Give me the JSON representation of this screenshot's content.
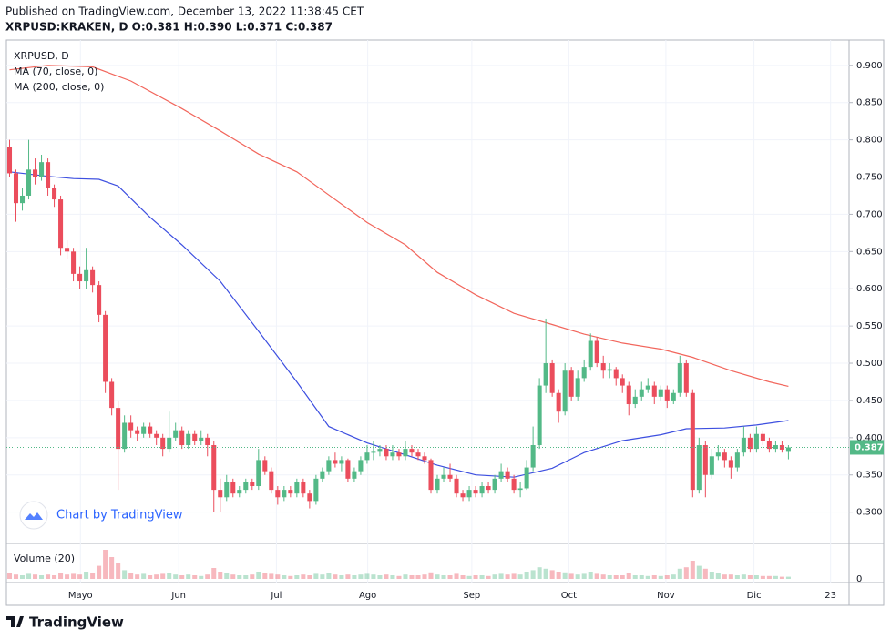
{
  "header": {
    "published": "Published on TradingView.com, December 13, 2022 11:38:45 CET",
    "symbol_line": "XRPUSD:KRAKEN, D  O:0.381 H:0.390 L:0.371 C:0.387"
  },
  "chart_data": {
    "type": "candlestick",
    "title": "XRPUSD, D",
    "up_color": "#53b987",
    "down_color": "#eb4d5c",
    "candles": [
      [
        0.79,
        0.8,
        0.75,
        0.755
      ],
      [
        0.755,
        0.76,
        0.69,
        0.715
      ],
      [
        0.715,
        0.735,
        0.705,
        0.725
      ],
      [
        0.725,
        0.8,
        0.72,
        0.76
      ],
      [
        0.76,
        0.775,
        0.74,
        0.75
      ],
      [
        0.75,
        0.78,
        0.745,
        0.77
      ],
      [
        0.77,
        0.775,
        0.725,
        0.735
      ],
      [
        0.735,
        0.74,
        0.71,
        0.72
      ],
      [
        0.72,
        0.725,
        0.645,
        0.655
      ],
      [
        0.655,
        0.665,
        0.64,
        0.65
      ],
      [
        0.65,
        0.655,
        0.61,
        0.62
      ],
      [
        0.62,
        0.63,
        0.6,
        0.61
      ],
      [
        0.61,
        0.655,
        0.6,
        0.625
      ],
      [
        0.625,
        0.63,
        0.595,
        0.605
      ],
      [
        0.605,
        0.61,
        0.555,
        0.565
      ],
      [
        0.565,
        0.57,
        0.46,
        0.475
      ],
      [
        0.475,
        0.48,
        0.43,
        0.44
      ],
      [
        0.44,
        0.45,
        0.33,
        0.385
      ],
      [
        0.385,
        0.43,
        0.38,
        0.42
      ],
      [
        0.42,
        0.43,
        0.4,
        0.41
      ],
      [
        0.41,
        0.415,
        0.395,
        0.405
      ],
      [
        0.405,
        0.42,
        0.4,
        0.415
      ],
      [
        0.415,
        0.42,
        0.4,
        0.405
      ],
      [
        0.405,
        0.41,
        0.39,
        0.4
      ],
      [
        0.4,
        0.405,
        0.375,
        0.385
      ],
      [
        0.385,
        0.435,
        0.38,
        0.4
      ],
      [
        0.4,
        0.42,
        0.395,
        0.41
      ],
      [
        0.41,
        0.415,
        0.385,
        0.39
      ],
      [
        0.39,
        0.41,
        0.385,
        0.405
      ],
      [
        0.405,
        0.41,
        0.39,
        0.395
      ],
      [
        0.395,
        0.41,
        0.39,
        0.4
      ],
      [
        0.4,
        0.405,
        0.375,
        0.39
      ],
      [
        0.39,
        0.395,
        0.3,
        0.33
      ],
      [
        0.33,
        0.345,
        0.3,
        0.32
      ],
      [
        0.32,
        0.35,
        0.315,
        0.34
      ],
      [
        0.34,
        0.345,
        0.32,
        0.325
      ],
      [
        0.325,
        0.335,
        0.32,
        0.33
      ],
      [
        0.33,
        0.345,
        0.325,
        0.34
      ],
      [
        0.34,
        0.345,
        0.33,
        0.335
      ],
      [
        0.335,
        0.385,
        0.33,
        0.37
      ],
      [
        0.37,
        0.375,
        0.35,
        0.355
      ],
      [
        0.355,
        0.36,
        0.325,
        0.33
      ],
      [
        0.33,
        0.335,
        0.31,
        0.32
      ],
      [
        0.32,
        0.335,
        0.315,
        0.33
      ],
      [
        0.33,
        0.335,
        0.32,
        0.325
      ],
      [
        0.325,
        0.345,
        0.32,
        0.34
      ],
      [
        0.34,
        0.345,
        0.32,
        0.325
      ],
      [
        0.325,
        0.33,
        0.305,
        0.315
      ],
      [
        0.315,
        0.35,
        0.31,
        0.345
      ],
      [
        0.345,
        0.36,
        0.34,
        0.355
      ],
      [
        0.355,
        0.375,
        0.35,
        0.37
      ],
      [
        0.37,
        0.38,
        0.36,
        0.365
      ],
      [
        0.365,
        0.375,
        0.355,
        0.37
      ],
      [
        0.37,
        0.372,
        0.34,
        0.345
      ],
      [
        0.345,
        0.36,
        0.34,
        0.355
      ],
      [
        0.355,
        0.375,
        0.35,
        0.37
      ],
      [
        0.37,
        0.39,
        0.365,
        0.38
      ],
      [
        0.38,
        0.395,
        0.37,
        0.381
      ],
      [
        0.381,
        0.39,
        0.375,
        0.385
      ],
      [
        0.385,
        0.39,
        0.37,
        0.375
      ],
      [
        0.375,
        0.39,
        0.37,
        0.38
      ],
      [
        0.38,
        0.385,
        0.37,
        0.375
      ],
      [
        0.375,
        0.395,
        0.37,
        0.385
      ],
      [
        0.385,
        0.39,
        0.375,
        0.38
      ],
      [
        0.38,
        0.385,
        0.37,
        0.375
      ],
      [
        0.375,
        0.38,
        0.365,
        0.37
      ],
      [
        0.37,
        0.372,
        0.325,
        0.33
      ],
      [
        0.33,
        0.35,
        0.325,
        0.345
      ],
      [
        0.345,
        0.36,
        0.34,
        0.35
      ],
      [
        0.35,
        0.365,
        0.34,
        0.345
      ],
      [
        0.345,
        0.35,
        0.32,
        0.325
      ],
      [
        0.325,
        0.33,
        0.315,
        0.32
      ],
      [
        0.32,
        0.335,
        0.315,
        0.33
      ],
      [
        0.33,
        0.335,
        0.32,
        0.325
      ],
      [
        0.325,
        0.34,
        0.32,
        0.335
      ],
      [
        0.335,
        0.34,
        0.325,
        0.33
      ],
      [
        0.33,
        0.35,
        0.325,
        0.345
      ],
      [
        0.345,
        0.365,
        0.34,
        0.355
      ],
      [
        0.355,
        0.36,
        0.34,
        0.345
      ],
      [
        0.345,
        0.35,
        0.325,
        0.33
      ],
      [
        0.33,
        0.34,
        0.32,
        0.332
      ],
      [
        0.332,
        0.37,
        0.33,
        0.36
      ],
      [
        0.36,
        0.415,
        0.355,
        0.39
      ],
      [
        0.39,
        0.48,
        0.385,
        0.47
      ],
      [
        0.47,
        0.56,
        0.46,
        0.5
      ],
      [
        0.5,
        0.505,
        0.455,
        0.46
      ],
      [
        0.46,
        0.465,
        0.42,
        0.435
      ],
      [
        0.435,
        0.5,
        0.43,
        0.49
      ],
      [
        0.49,
        0.495,
        0.45,
        0.455
      ],
      [
        0.455,
        0.49,
        0.45,
        0.48
      ],
      [
        0.48,
        0.505,
        0.475,
        0.495
      ],
      [
        0.495,
        0.54,
        0.49,
        0.53
      ],
      [
        0.53,
        0.535,
        0.495,
        0.5
      ],
      [
        0.5,
        0.51,
        0.48,
        0.49
      ],
      [
        0.49,
        0.5,
        0.48,
        0.492
      ],
      [
        0.492,
        0.495,
        0.47,
        0.48
      ],
      [
        0.48,
        0.485,
        0.46,
        0.47
      ],
      [
        0.47,
        0.475,
        0.43,
        0.445
      ],
      [
        0.445,
        0.465,
        0.44,
        0.455
      ],
      [
        0.455,
        0.475,
        0.45,
        0.465
      ],
      [
        0.465,
        0.48,
        0.46,
        0.47
      ],
      [
        0.47,
        0.475,
        0.445,
        0.455
      ],
      [
        0.455,
        0.47,
        0.45,
        0.465
      ],
      [
        0.465,
        0.47,
        0.44,
        0.45
      ],
      [
        0.45,
        0.465,
        0.445,
        0.46
      ],
      [
        0.46,
        0.51,
        0.455,
        0.5
      ],
      [
        0.5,
        0.505,
        0.455,
        0.46
      ],
      [
        0.46,
        0.465,
        0.32,
        0.33
      ],
      [
        0.33,
        0.4,
        0.325,
        0.39
      ],
      [
        0.39,
        0.395,
        0.32,
        0.35
      ],
      [
        0.35,
        0.385,
        0.345,
        0.375
      ],
      [
        0.375,
        0.39,
        0.37,
        0.38
      ],
      [
        0.38,
        0.385,
        0.36,
        0.37
      ],
      [
        0.37,
        0.375,
        0.345,
        0.36
      ],
      [
        0.36,
        0.385,
        0.355,
        0.38
      ],
      [
        0.38,
        0.415,
        0.375,
        0.4
      ],
      [
        0.4,
        0.405,
        0.38,
        0.385
      ],
      [
        0.385,
        0.415,
        0.38,
        0.405
      ],
      [
        0.405,
        0.41,
        0.39,
        0.395
      ],
      [
        0.395,
        0.4,
        0.38,
        0.385
      ],
      [
        0.385,
        0.395,
        0.38,
        0.39
      ],
      [
        0.39,
        0.395,
        0.38,
        0.384
      ],
      [
        0.381,
        0.39,
        0.371,
        0.387
      ]
    ],
    "ma_series": [
      {
        "name": "MA (70, close, 0)",
        "color": "#3d4fe0",
        "x": [
          0,
          6,
          10,
          14,
          17,
          22,
          27,
          33,
          39,
          45,
          50,
          56,
          62,
          67,
          73,
          79,
          85,
          90,
          96,
          102,
          106,
          112,
          117,
          122
        ],
        "values": [
          0.757,
          0.751,
          0.748,
          0.747,
          0.738,
          0.696,
          0.659,
          0.61,
          0.543,
          0.475,
          0.415,
          0.393,
          0.377,
          0.363,
          0.35,
          0.347,
          0.359,
          0.38,
          0.396,
          0.404,
          0.412,
          0.413,
          0.417,
          0.423
        ]
      },
      {
        "name": "MA (200, close, 0)",
        "color": "#f2665c",
        "x": [
          0,
          6,
          13,
          19,
          27,
          33,
          39,
          45,
          50,
          56,
          62,
          67,
          73,
          79,
          85,
          90,
          96,
          102,
          107,
          113,
          119,
          122
        ],
        "values": [
          0.894,
          0.9,
          0.898,
          0.879,
          0.842,
          0.812,
          0.781,
          0.757,
          0.726,
          0.689,
          0.659,
          0.622,
          0.592,
          0.567,
          0.552,
          0.539,
          0.527,
          0.519,
          0.508,
          0.49,
          0.475,
          0.469
        ]
      }
    ],
    "xlim": [
      -0.5,
      131.5
    ],
    "xticks": [
      {
        "value": 11.1,
        "label": "Mayo"
      },
      {
        "value": 26.5,
        "label": "Jun"
      },
      {
        "value": 41.8,
        "label": "Jul"
      },
      {
        "value": 56.1,
        "label": "Ago"
      },
      {
        "value": 72.4,
        "label": "Sep"
      },
      {
        "value": 87.6,
        "label": "Oct"
      },
      {
        "value": 102.8,
        "label": "Nov"
      },
      {
        "value": 116.6,
        "label": "Dic"
      },
      {
        "value": 128.6,
        "label": "23"
      }
    ],
    "ylim": [
      0.258,
      0.934
    ],
    "yticks": [
      {
        "value": 0.3,
        "label": "0.300"
      },
      {
        "value": 0.35,
        "label": "0.350"
      },
      {
        "value": 0.4,
        "label": "0.400"
      },
      {
        "value": 0.45,
        "label": "0.450"
      },
      {
        "value": 0.5,
        "label": "0.500"
      },
      {
        "value": 0.55,
        "label": "0.550"
      },
      {
        "value": 0.6,
        "label": "0.600"
      },
      {
        "value": 0.65,
        "label": "0.650"
      },
      {
        "value": 0.7,
        "label": "0.700"
      },
      {
        "value": 0.75,
        "label": "0.750"
      },
      {
        "value": 0.8,
        "label": "0.800"
      },
      {
        "value": 0.85,
        "label": "0.850"
      },
      {
        "value": 0.9,
        "label": "0.900"
      }
    ],
    "grid": true,
    "last_price_label": "0.387",
    "watermark": "Chart by TradingView",
    "volume": {
      "title": "Volume (20)",
      "ylim": [
        0,
        45
      ],
      "yticks": [
        0
      ],
      "values": [
        8,
        6,
        5,
        7,
        6,
        5,
        6,
        5,
        8,
        6,
        7,
        6,
        10,
        8,
        18,
        40,
        30,
        22,
        12,
        8,
        6,
        7,
        5,
        6,
        7,
        8,
        6,
        5,
        6,
        5,
        4,
        6,
        15,
        10,
        8,
        6,
        5,
        5,
        6,
        10,
        8,
        7,
        6,
        5,
        4,
        5,
        6,
        5,
        7,
        6,
        8,
        6,
        5,
        6,
        5,
        6,
        7,
        6,
        5,
        6,
        5,
        4,
        6,
        5,
        5,
        6,
        9,
        6,
        5,
        5,
        7,
        5,
        4,
        5,
        5,
        4,
        6,
        7,
        6,
        7,
        6,
        10,
        12,
        16,
        14,
        12,
        10,
        9,
        7,
        6,
        7,
        10,
        7,
        6,
        5,
        5,
        5,
        8,
        5,
        5,
        4,
        5,
        4,
        5,
        6,
        14,
        16,
        25,
        18,
        14,
        10,
        8,
        6,
        6,
        5,
        6,
        5,
        5,
        4,
        4,
        4,
        3,
        3
      ]
    }
  },
  "footer": {
    "brand": "TradingView"
  }
}
